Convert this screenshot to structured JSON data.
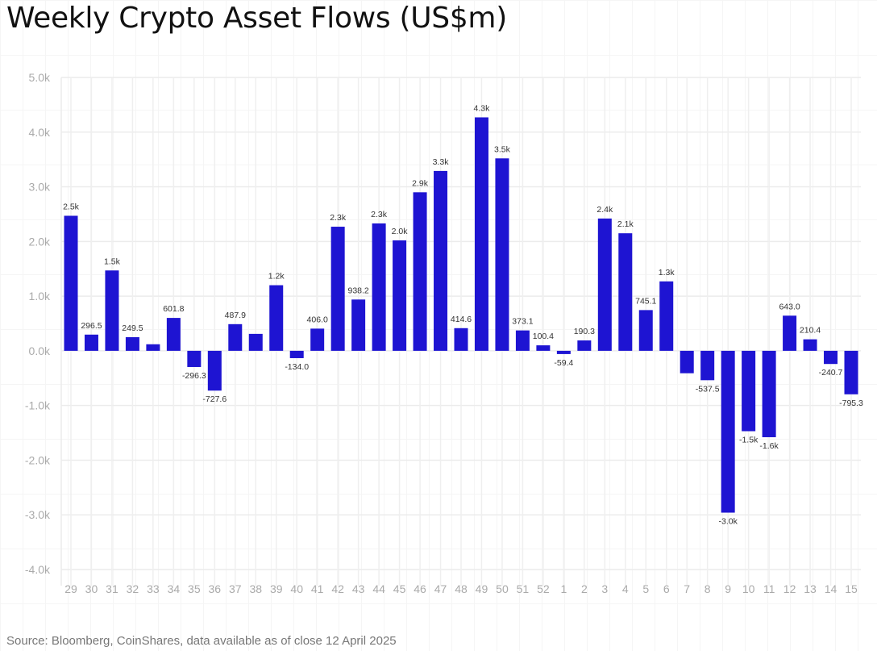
{
  "chart_data": {
    "type": "bar",
    "title": "Weekly Crypto Asset Flows (US$m)",
    "xlabel": "",
    "ylabel": "",
    "ylim": [
      -4000,
      5000
    ],
    "yticks": [
      5000,
      4000,
      3000,
      2000,
      1000,
      0,
      -1000,
      -2000,
      -3000,
      -4000
    ],
    "ytick_labels": [
      "5.0k",
      "4.0k",
      "3.0k",
      "2.0k",
      "1.0k",
      "0.0k",
      "-1.0k",
      "-2.0k",
      "-3.0k",
      "-4.0k"
    ],
    "grid": true,
    "color": "#1e14d2",
    "categories": [
      "29",
      "30",
      "31",
      "32",
      "33",
      "34",
      "35",
      "36",
      "37",
      "38",
      "39",
      "40",
      "41",
      "42",
      "43",
      "44",
      "45",
      "46",
      "47",
      "48",
      "49",
      "50",
      "51",
      "52",
      "1",
      "2",
      "3",
      "4",
      "5",
      "6",
      "7",
      "8",
      "9",
      "10",
      "11",
      "12",
      "13",
      "14",
      "15"
    ],
    "values": [
      2470,
      296.5,
      1470,
      249.5,
      120,
      601.8,
      -296.3,
      -727.6,
      487.9,
      310,
      1200,
      -134.0,
      406.0,
      2270,
      938.2,
      2330,
      2020,
      2900,
      3290,
      414.6,
      4270,
      3520,
      373.1,
      100.4,
      -59.4,
      190.3,
      2420,
      2150,
      745.1,
      1270,
      -410,
      -537.5,
      -2960,
      -1470,
      -1580,
      643.0,
      210.4,
      -240.7,
      -795.3
    ],
    "data_labels": [
      "2.5k",
      "296.5",
      "1.5k",
      "249.5",
      null,
      "601.8",
      "-296.3",
      "-727.6",
      "487.9",
      null,
      "1.2k",
      "-134.0",
      "406.0",
      "2.3k",
      "938.2",
      "2.3k",
      "2.0k",
      "2.9k",
      "3.3k",
      "414.6",
      "4.3k",
      "3.5k",
      "373.1",
      "100.4",
      "-59.4",
      "190.3",
      "2.4k",
      "2.1k",
      "745.1",
      "1.3k",
      null,
      "-537.5",
      "-3.0k",
      "-1.5k",
      "-1.6k",
      "643.0",
      "210.4",
      "-240.7",
      "-795.3"
    ]
  },
  "source": "Source: Bloomberg, CoinShares, data available as of close 12 April 2025"
}
